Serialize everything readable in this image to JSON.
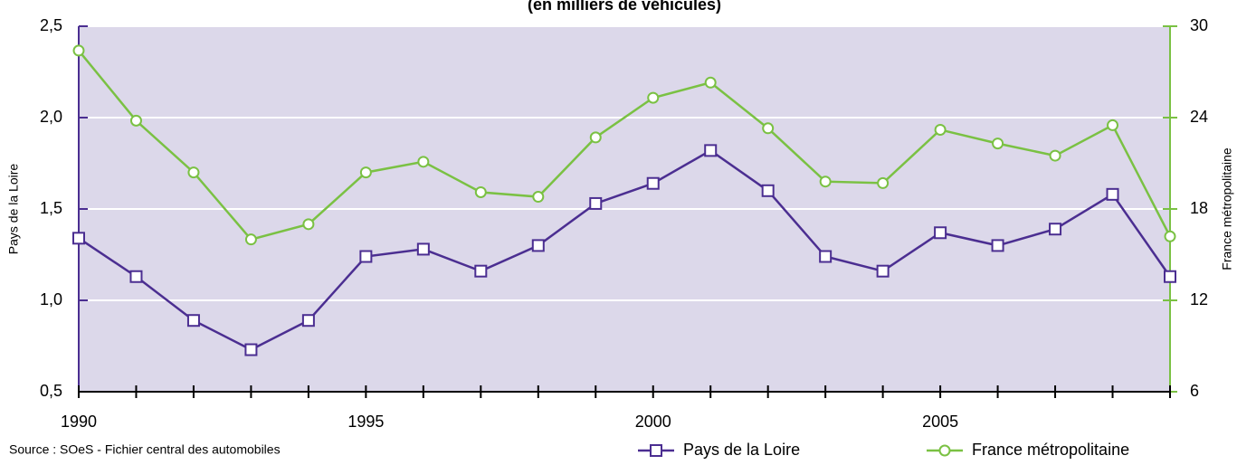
{
  "chart_data": {
    "type": "line",
    "subtitle": "(en milliers de véhicules)",
    "categories": [
      "1990",
      null,
      null,
      null,
      null,
      "1995",
      null,
      null,
      null,
      null,
      "2000",
      null,
      null,
      null,
      null,
      "2005",
      null,
      null,
      null,
      null
    ],
    "series": [
      {
        "name": "Pays de la Loire",
        "color": "#4b2e91",
        "marker": "square",
        "values": [
          1.34,
          1.13,
          0.89,
          0.73,
          0.89,
          1.24,
          1.28,
          1.16,
          1.3,
          1.53,
          1.64,
          1.82,
          1.6,
          1.24,
          1.16,
          1.37,
          1.3,
          1.39,
          1.58,
          1.13
        ]
      },
      {
        "name": "France métropolitaine",
        "color": "#7ac143",
        "marker": "circle",
        "axis": "y2",
        "values": [
          28.4,
          23.8,
          20.4,
          16.0,
          17.0,
          20.4,
          21.1,
          19.1,
          18.8,
          22.7,
          25.3,
          26.3,
          23.3,
          19.8,
          19.7,
          23.2,
          22.3,
          21.5,
          23.5,
          16.2
        ]
      }
    ],
    "ylabel": "Pays de la Loire",
    "y2label": "France métropolitaine",
    "ylim": [
      0.5,
      2.5
    ],
    "yticks": [
      {
        "value": 0.5,
        "label": "0,5"
      },
      {
        "value": 1.0,
        "label": "1,0"
      },
      {
        "value": 1.5,
        "label": "1,5"
      },
      {
        "value": 2.0,
        "label": "2,0"
      },
      {
        "value": 2.5,
        "label": "2,5"
      }
    ],
    "y2lim": [
      6,
      30
    ],
    "y2ticks": [
      6,
      12,
      18,
      24,
      30
    ],
    "grid": true,
    "plot_background": "#dcd8ea",
    "legend": "bottom-right",
    "source": "Source : SOeS - Fichier central des automobiles"
  }
}
